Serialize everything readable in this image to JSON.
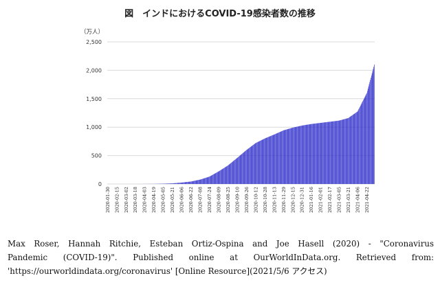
{
  "chart_data": {
    "type": "bar",
    "title": "図　インドにおけるCOVID-19感染者数の推移",
    "unit_label": "（万人）",
    "ylim": [
      0,
      2500
    ],
    "yticks": [
      "2,500",
      "2,000",
      "1,500",
      "1,000",
      "500",
      "0"
    ],
    "ytick_values": [
      2500,
      2000,
      1500,
      1000,
      500,
      0
    ],
    "grid": true,
    "bar_color": "#3333cc",
    "start_date": "2020-01-30",
    "end_date": "2021-05-05",
    "xtick_labels": [
      "2020-01-30",
      "2020-02-15",
      "2020-03-02",
      "2020-03-18",
      "2020-04-03",
      "2020-04-19",
      "2020-05-05",
      "2020-05-21",
      "2020-06-06",
      "2020-06-22",
      "2020-07-08",
      "2020-07-24",
      "2020-08-09",
      "2020-08-25",
      "2020-09-10",
      "2020-09-26",
      "2020-10-12",
      "2020-10-28",
      "2020-11-13",
      "2020-11-29",
      "2020-12-15",
      "2020-12-31",
      "2021-01-16",
      "2021-02-01",
      "2021-02-17",
      "2021-03-05",
      "2021-03-21",
      "2021-04-06",
      "2021-04-22"
    ],
    "series": [
      {
        "x": [
          "2020-01-30",
          "2020-03-18",
          "2020-04-19",
          "2020-05-05",
          "2020-05-21",
          "2020-06-06",
          "2020-06-22",
          "2020-07-08",
          "2020-07-24",
          "2020-08-09",
          "2020-08-25",
          "2020-09-10",
          "2020-09-26",
          "2020-10-12",
          "2020-10-28",
          "2020-11-13",
          "2020-11-29",
          "2020-12-15",
          "2020-12-31",
          "2021-01-16",
          "2021-02-01",
          "2021-02-17",
          "2021-03-05",
          "2021-03-21",
          "2021-04-06",
          "2021-04-22",
          "2021-05-05"
        ],
        "values": [
          0,
          0,
          1.5,
          5,
          11,
          25,
          43,
          77,
          129,
          221,
          325,
          458,
          597,
          720,
          802,
          870,
          943,
          991,
          1028,
          1055,
          1075,
          1095,
          1115,
          1160,
          1275,
          1600,
          2100
        ]
      }
    ]
  },
  "source": {
    "line1": "Max Roser, Hannah Ritchie, Esteban Ortiz-Ospina and Joe Hasell (2020) - \"Coronavirus",
    "line2": "Pandemic (COVID-19)\". Published online at OurWorldInData.org. Retrieved from:",
    "line3": "'https://ourworldindata.org/coronavirus' [Online Resource](2021/5/6 アクセス)"
  }
}
